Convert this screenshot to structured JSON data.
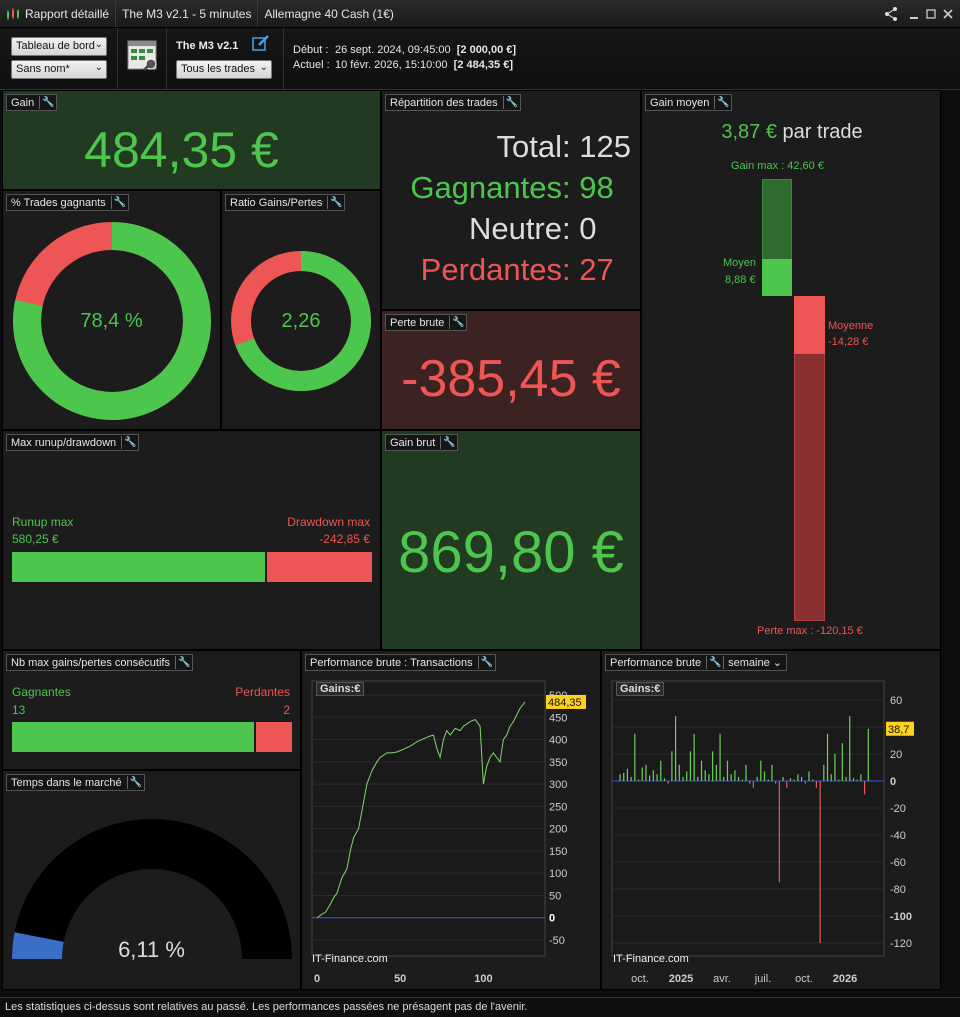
{
  "titlebar": {
    "app": "Rapport détaillé",
    "system": "The M3 v2.1 - 5 minutes",
    "instrument": "Allemagne 40 Cash (1€)"
  },
  "toolbar": {
    "view_select": "Tableau de bord",
    "name_select": "Sans nom*",
    "system_name": "The M3 v2.1",
    "trades_select": "Tous les trades",
    "start_label": "Début :",
    "start_value": "26 sept. 2024, 09:45:00",
    "start_capital": "[2 000,00 €]",
    "current_label": "Actuel :",
    "current_value": "10 févr. 2026, 15:10:00",
    "current_capital": "[2 484,35 €]"
  },
  "gain": {
    "title": "Gain",
    "value": "484,35 €"
  },
  "win_pct": {
    "title": "% Trades gagnants",
    "value": "78,4 %",
    "ratio": 0.784
  },
  "ratio_gp": {
    "title": "Ratio Gains/Pertes",
    "value": "2,26",
    "ratio": 0.693
  },
  "repartition": {
    "title": "Répartition des trades",
    "rows": [
      {
        "label": "Total",
        "value": "125",
        "color": "#dddddd"
      },
      {
        "label": "Gagnantes",
        "value": "98",
        "color": "#4cc64c"
      },
      {
        "label": "Neutre",
        "value": "0",
        "color": "#dddddd"
      },
      {
        "label": "Perdantes",
        "value": "27",
        "color": "#ee5555"
      }
    ]
  },
  "perte_brute": {
    "title": "Perte brute",
    "value": "-385,45 €"
  },
  "gain_brut": {
    "title": "Gain brut",
    "value": "869,80 €"
  },
  "gain_moyen": {
    "title": "Gain moyen",
    "avg": "3,87 €",
    "suffix": "par trade",
    "gain_max_label": "Gain max : 42,60 €",
    "moyen_label": "Moyen",
    "moyen_value": "8,88 €",
    "moyenne_label": "Moyenne",
    "moyenne_value": "-14,28 €",
    "perte_max_label": "Perte max : -120,15 €",
    "gain_max": 42.6,
    "moyen": 8.88,
    "moyenne": -14.28,
    "perte_max": -120.15
  },
  "runup": {
    "title": "Max runup/drawdown",
    "runup_label": "Runup max",
    "runup_value": "580,25 €",
    "drawdown_label": "Drawdown max",
    "drawdown_value": "-242,85 €",
    "runup": 580.25,
    "drawdown": 242.85
  },
  "consec": {
    "title": "Nb max gains/pertes consécutifs",
    "win_label": "Gagnantes",
    "win_value": "13",
    "loss_label": "Perdantes",
    "loss_value": "2",
    "wins": 13,
    "losses": 2
  },
  "market_time": {
    "title": "Temps dans le marché",
    "value": "6,11 %",
    "ratio": 0.0611
  },
  "perf_tx": {
    "title": "Performance brute : Transactions",
    "legend": "Gains:€",
    "watermark": "IT-Finance.com",
    "badge": "484,35",
    "y_ticks": [
      "500",
      "450",
      "400",
      "350",
      "300",
      "250",
      "200",
      "150",
      "100",
      "50",
      "0",
      "-50"
    ],
    "x_ticks": [
      "0",
      "50",
      "100"
    ]
  },
  "perf_week": {
    "title": "Performance brute",
    "period_select": "semaine",
    "legend": "Gains:€",
    "watermark": "IT-Finance.com",
    "badge": "38,7",
    "y_ticks": [
      "60",
      "40",
      "20",
      "0",
      "-20",
      "-40",
      "-60",
      "-80",
      "-100",
      "-120"
    ],
    "x_ticks": [
      "oct.",
      "2025",
      "avr.",
      "juil.",
      "oct.",
      "2026"
    ]
  },
  "chart_data": [
    {
      "type": "line",
      "title": "Performance brute : Transactions",
      "xlim": [
        0,
        125
      ],
      "ylim": [
        -50,
        500
      ],
      "series": [
        {
          "name": "Gains:€",
          "x": [
            0,
            3,
            5,
            8,
            10,
            12,
            15,
            18,
            20,
            22,
            25,
            28,
            30,
            33,
            36,
            38,
            40,
            42,
            45,
            48,
            50,
            53,
            56,
            58,
            60,
            63,
            66,
            68,
            70,
            72,
            74,
            76,
            78,
            80,
            83,
            86,
            88,
            90,
            92,
            95,
            98,
            100,
            102,
            104,
            106,
            108,
            110,
            112,
            114,
            116,
            118,
            120,
            122,
            125
          ],
          "y": [
            0,
            8,
            12,
            30,
            45,
            55,
            90,
            110,
            150,
            180,
            200,
            260,
            300,
            330,
            350,
            360,
            365,
            370,
            370,
            372,
            375,
            380,
            385,
            390,
            395,
            400,
            405,
            408,
            410,
            380,
            360,
            400,
            420,
            410,
            425,
            420,
            430,
            435,
            440,
            445,
            430,
            300,
            340,
            360,
            370,
            360,
            350,
            400,
            410,
            430,
            440,
            455,
            470,
            484.35
          ]
        }
      ]
    },
    {
      "type": "bar",
      "title": "Performance brute",
      "ylim": [
        -130,
        65
      ],
      "series": [
        {
          "name": "Gains:€",
          "values": [
            5,
            6,
            9,
            3,
            35,
            1,
            10,
            12,
            4,
            8,
            5,
            15,
            2,
            -2,
            22,
            48,
            12,
            3,
            7,
            22,
            35,
            3,
            15,
            8,
            5,
            22,
            12,
            35,
            3,
            15,
            5,
            8,
            3,
            1,
            12,
            -2,
            -5,
            3,
            15,
            7,
            1,
            12,
            -2,
            -75,
            3,
            -5,
            2,
            1,
            5,
            3,
            -2,
            7,
            1,
            -5,
            -120,
            12,
            35,
            5,
            20,
            1,
            28,
            3,
            48,
            2,
            1,
            5,
            -10,
            38.7
          ]
        }
      ]
    }
  ]
}
